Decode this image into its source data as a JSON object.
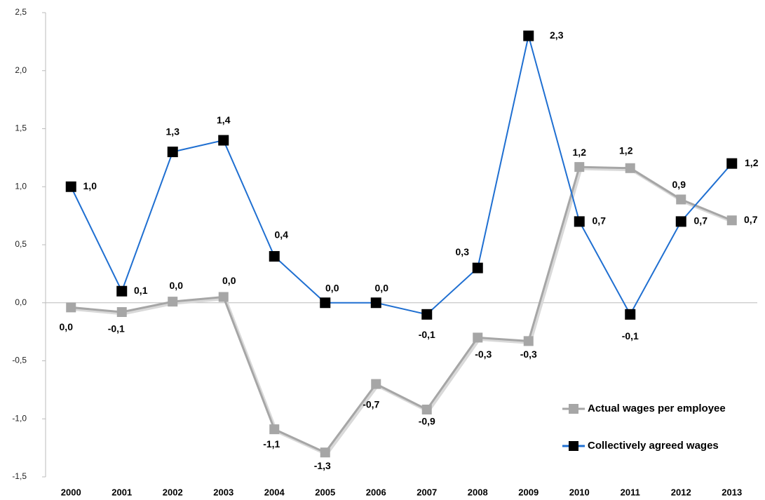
{
  "chart_data": {
    "type": "line",
    "categories": [
      "2000",
      "2001",
      "2002",
      "2003",
      "2004",
      "2005",
      "2006",
      "2007",
      "2008",
      "2009",
      "2010",
      "2011",
      "2012",
      "2013"
    ],
    "series": [
      {
        "name": "Actual wages per employee",
        "color": "#a6a6a6",
        "marker_color": "#a6a6a6",
        "values": [
          -0.04,
          -0.08,
          0.01,
          0.05,
          -1.09,
          -1.29,
          -0.7,
          -0.92,
          -0.3,
          -0.33,
          1.17,
          1.16,
          0.89,
          0.71
        ],
        "value_labels": [
          "0,0",
          "-0,1",
          "0,0",
          "0,0",
          "-1,1",
          "-1,3",
          "-0,7",
          "-0,9",
          "-0,3",
          "-0,3",
          "1,2",
          "1,2",
          "0,9",
          "0,7"
        ]
      },
      {
        "name": "Collectively agreed wages",
        "color": "#1f6fd1",
        "marker_color": "#000000",
        "values": [
          1.0,
          0.1,
          1.3,
          1.4,
          0.4,
          0.0,
          0.0,
          -0.1,
          0.3,
          2.3,
          0.7,
          -0.1,
          0.7,
          1.2
        ],
        "value_labels": [
          "1,0",
          "0,1",
          "1,3",
          "1,4",
          "0,4",
          "0,0",
          "0,0",
          "-0,1",
          "0,3",
          "2,3",
          "0,7",
          "-0,1",
          "0,7",
          "1,2"
        ]
      }
    ],
    "ylim": [
      -1.5,
      2.5
    ],
    "yticks": [
      {
        "value": -1.5,
        "label": "-1,5"
      },
      {
        "value": -1,
        "label": "-1,0"
      },
      {
        "value": -0.5,
        "label": "-0,5"
      },
      {
        "value": 0,
        "label": "0,0"
      },
      {
        "value": 0.5,
        "label": "0,5"
      },
      {
        "value": 1,
        "label": "1,0"
      },
      {
        "value": 1.5,
        "label": "1,5"
      },
      {
        "value": 2,
        "label": "2,0"
      },
      {
        "value": 2.5,
        "label": "2,5"
      }
    ],
    "legend": "bottom-right"
  }
}
